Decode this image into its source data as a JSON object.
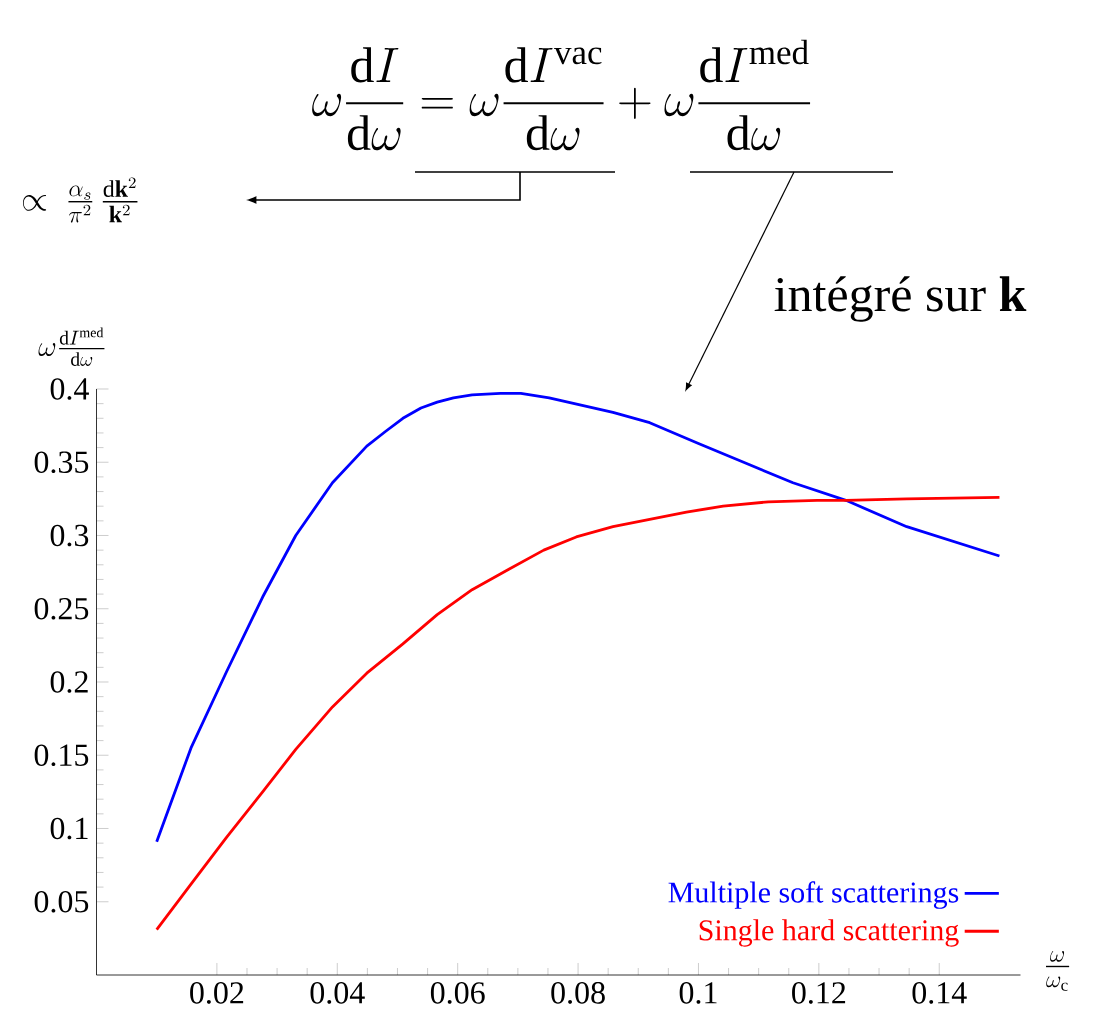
{
  "chart_data": {
    "type": "line",
    "annotations": [
      "\\omega\\frac{\\mathrm{d}I}{\\mathrm{d}\\omega} = \\omega\\frac{\\mathrm{d}I^{\\mathrm{vac}}}{\\mathrm{d}\\omega} + \\omega\\frac{\\mathrm{d}I^{\\mathrm{med}}}{\\mathrm{d}\\omega}",
      "\\propto\\ \\frac{\\alpha_s}{\\pi^2}\\,\\frac{\\mathrm{d}\\mathbf{k}^2}{\\mathbf{k}^2}",
      "intégré sur **k**"
    ],
    "xlabel": "\\frac{\\omega}{\\omega_{\\mathrm{c}}}",
    "ylabel": "\\omega\\frac{\\mathrm{d}I^{\\mathrm{med}}}{\\mathrm{d}\\omega}",
    "series": [
      {
        "name": "Multiple soft scatterings",
        "color": "#0000ff",
        "x": [
          0.01,
          0.0157,
          0.0216,
          0.0276,
          0.0331,
          0.0392,
          0.0449,
          0.048,
          0.0509,
          0.0539,
          0.0566,
          0.0593,
          0.0624,
          0.0671,
          0.0705,
          0.0752,
          0.0858,
          0.0919,
          0.0999,
          0.1075,
          0.1157,
          0.1245,
          0.1346,
          0.15
        ],
        "values": [
          0.091,
          0.155,
          0.207,
          0.258,
          0.3,
          0.336,
          0.361,
          0.371,
          0.38,
          0.387,
          0.391,
          0.394,
          0.396,
          0.397,
          0.397,
          0.394,
          0.384,
          0.377,
          0.363,
          0.35,
          0.336,
          0.324,
          0.306,
          0.286
        ]
      },
      {
        "name": "Single hard scattering",
        "color": "#ff0000",
        "x": [
          0.01,
          0.0157,
          0.0216,
          0.0276,
          0.0331,
          0.0392,
          0.0449,
          0.0509,
          0.0566,
          0.0624,
          0.0685,
          0.0743,
          0.0797,
          0.0858,
          0.0919,
          0.098,
          0.1041,
          0.1116,
          0.1197,
          0.1245,
          0.1346,
          0.15
        ],
        "values": [
          0.031,
          0.062,
          0.094,
          0.125,
          0.154,
          0.183,
          0.206,
          0.226,
          0.246,
          0.263,
          0.277,
          0.29,
          0.299,
          0.306,
          0.311,
          0.316,
          0.32,
          0.323,
          0.324,
          0.324,
          0.325,
          0.326
        ]
      }
    ],
    "xlim": [
      0,
      0.1535
    ],
    "ylim": [
      0,
      0.4
    ],
    "xticks": [
      0.02,
      0.04,
      0.06,
      0.08,
      0.1,
      0.12,
      0.14
    ],
    "yticks": [
      0.05,
      0.1,
      0.15,
      0.2,
      0.25,
      0.3,
      0.35,
      0.4
    ],
    "legend": "bottom right"
  }
}
